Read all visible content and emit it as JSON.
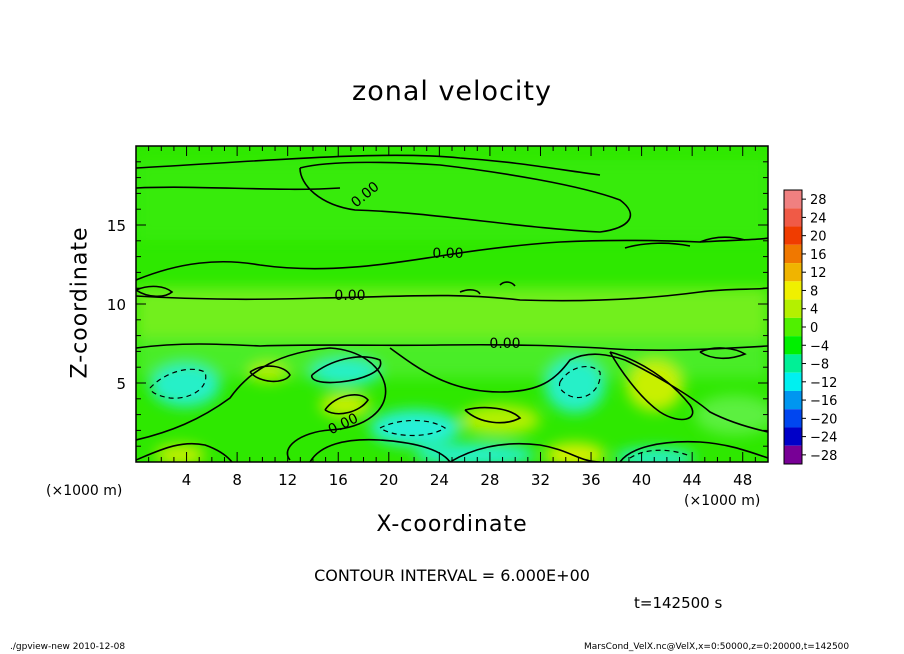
{
  "chart_data": {
    "type": "heatmap",
    "title": "zonal velocity",
    "xlabel": "X-coordinate",
    "ylabel": "Z-coordinate",
    "x_unit_label": "(×1000 m)",
    "y_unit_label": "(×1000 m)",
    "xlim": [
      0,
      50
    ],
    "ylim": [
      0,
      20
    ],
    "x_ticks": [
      4,
      8,
      12,
      16,
      20,
      24,
      28,
      32,
      36,
      40,
      44,
      48
    ],
    "y_ticks": [
      5,
      10,
      15
    ],
    "colorbar": {
      "levels": [
        "28",
        "24",
        "20",
        "16",
        "12",
        "8",
        "4",
        "0",
        "−4",
        "−8",
        "−12",
        "−16",
        "−20",
        "−24",
        "−28"
      ],
      "colors": [
        "#f08080",
        "#f05a46",
        "#f03c00",
        "#f07800",
        "#f0b400",
        "#f0f000",
        "#b4f000",
        "#50f000",
        "#00f000",
        "#00f096",
        "#00f0f0",
        "#0096f0",
        "#0046f0",
        "#0000c8",
        "#780096"
      ]
    },
    "contour_labels": [
      "0.00",
      "0.00",
      "0.00",
      "0.00",
      "0.00"
    ],
    "contour_interval": "CONTOUR INTERVAL = 6.000E+00",
    "time": "t=142500  s"
  },
  "footer": {
    "left": "./gpview-new   2010-12-08",
    "right": "MarsCond_VelX.nc@VelX,x=0:50000,z=0:20000,t=142500"
  }
}
